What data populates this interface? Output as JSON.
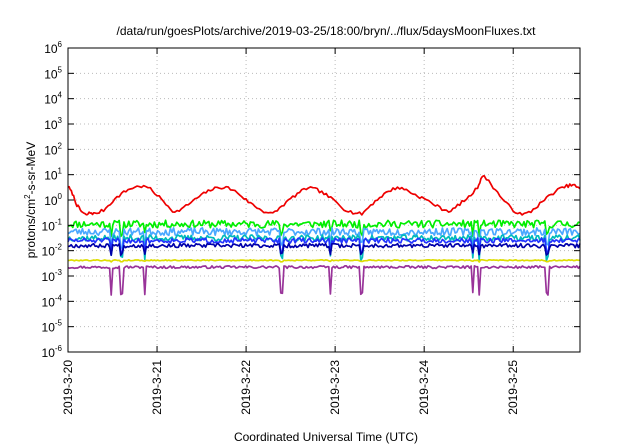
{
  "chart_data": {
    "type": "line",
    "title": "/data/run/goesPlots/archive/2019-03-25/18:00/bryn/../flux/5daysMoonFluxes.txt",
    "xlabel": "Coordinated Universal Time (UTC)",
    "ylabel_main": "protons/cm",
    "ylabel_sup": "2",
    "ylabel_rest": "-s-sr-MeV",
    "yscale": "log",
    "ylim": [
      -6,
      6
    ],
    "y_ticks": [
      {
        "base": "10",
        "exp": "6"
      },
      {
        "base": "10",
        "exp": "5"
      },
      {
        "base": "10",
        "exp": "4"
      },
      {
        "base": "10",
        "exp": "3"
      },
      {
        "base": "10",
        "exp": "2"
      },
      {
        "base": "10",
        "exp": "1"
      },
      {
        "base": "10",
        "exp": "0"
      },
      {
        "base": "10",
        "exp": "-1"
      },
      {
        "base": "10",
        "exp": "-2"
      },
      {
        "base": "10",
        "exp": "-3"
      },
      {
        "base": "10",
        "exp": "-4"
      },
      {
        "base": "10",
        "exp": "-5"
      },
      {
        "base": "10",
        "exp": "-6"
      }
    ],
    "x_range_days": [
      "2019-03-20",
      "2019-03-25T18:00"
    ],
    "x_tick_labels": [
      "2019-3-20",
      "2019-3-21",
      "2019-3-22",
      "2019-3-23",
      "2019-3-24",
      "2019-3-25"
    ],
    "grid": true,
    "series": [
      {
        "color": "#ee0000",
        "log10_values": [
          [
            0.0,
            0.55
          ],
          [
            0.05,
            0.25
          ],
          [
            0.1,
            -0.2
          ],
          [
            0.15,
            -0.45
          ],
          [
            0.2,
            -0.6
          ],
          [
            0.25,
            -0.5
          ],
          [
            0.3,
            -0.55
          ],
          [
            0.4,
            -0.4
          ],
          [
            0.5,
            -0.05
          ],
          [
            0.6,
            0.25
          ],
          [
            0.7,
            0.45
          ],
          [
            0.8,
            0.55
          ],
          [
            0.9,
            0.5
          ],
          [
            1.0,
            0.2
          ],
          [
            1.1,
            -0.15
          ],
          [
            1.2,
            -0.5
          ],
          [
            1.3,
            -0.3
          ],
          [
            1.4,
            -0.05
          ],
          [
            1.5,
            0.2
          ],
          [
            1.6,
            0.4
          ],
          [
            1.7,
            0.5
          ],
          [
            1.8,
            0.48
          ],
          [
            1.9,
            0.3
          ],
          [
            2.0,
            0.0
          ],
          [
            2.1,
            -0.25
          ],
          [
            2.2,
            -0.45
          ],
          [
            2.3,
            -0.55
          ],
          [
            2.4,
            -0.25
          ],
          [
            2.5,
            0.05
          ],
          [
            2.6,
            0.3
          ],
          [
            2.7,
            0.5
          ],
          [
            2.8,
            0.4
          ],
          [
            2.9,
            0.2
          ],
          [
            3.0,
            -0.05
          ],
          [
            3.1,
            -0.35
          ],
          [
            3.2,
            -0.5
          ],
          [
            3.3,
            -0.55
          ],
          [
            3.4,
            -0.2
          ],
          [
            3.5,
            0.1
          ],
          [
            3.6,
            0.35
          ],
          [
            3.7,
            0.5
          ],
          [
            3.8,
            0.4
          ],
          [
            3.9,
            0.2
          ],
          [
            4.0,
            0.05
          ],
          [
            4.1,
            -0.15
          ],
          [
            4.2,
            -0.35
          ],
          [
            4.3,
            -0.45
          ],
          [
            4.4,
            -0.15
          ],
          [
            4.5,
            0.1
          ],
          [
            4.6,
            0.5
          ],
          [
            4.65,
            0.95
          ],
          [
            4.7,
            0.85
          ],
          [
            4.8,
            0.4
          ],
          [
            4.9,
            -0.05
          ],
          [
            5.0,
            -0.4
          ],
          [
            5.1,
            -0.6
          ],
          [
            5.2,
            -0.45
          ],
          [
            5.3,
            -0.15
          ],
          [
            5.4,
            0.15
          ],
          [
            5.5,
            0.4
          ],
          [
            5.6,
            0.55
          ],
          [
            5.67,
            0.6
          ],
          [
            5.75,
            0.45
          ]
        ]
      },
      {
        "color": "#00ee00",
        "base": -0.95,
        "amp": 0.15,
        "dip": 0.35,
        "seed": 11
      },
      {
        "color": "#4aa8ff",
        "base": -1.25,
        "amp": 0.15,
        "dip": 0.55,
        "seed": 23
      },
      {
        "color": "#00bbbb",
        "base": -1.5,
        "amp": 0.12,
        "dip": 0.8,
        "seed": 37
      },
      {
        "color": "#2233ff",
        "base": -1.6,
        "amp": 0.1,
        "dip": 0.4,
        "seed": 51
      },
      {
        "color": "#0000aa",
        "base": -1.8,
        "amp": 0.08,
        "dip": 0.3,
        "seed": 67
      },
      {
        "color": "#dddd00",
        "base": -2.38,
        "amp": 0.02,
        "dip": 0.05,
        "seed": 79
      },
      {
        "color": "#993399",
        "base": -2.65,
        "amp": 0.05,
        "dip": 1.05,
        "seed": 97
      }
    ]
  }
}
